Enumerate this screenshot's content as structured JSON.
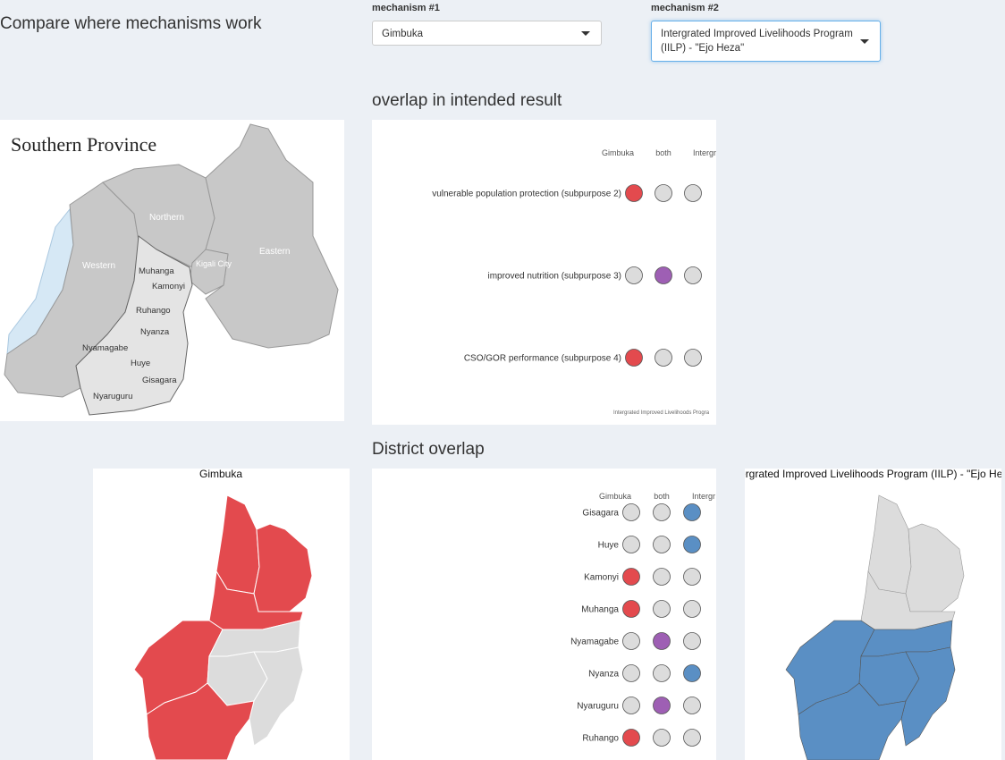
{
  "page_title": "Compare where mechanisms work",
  "mechanism1": {
    "label": "mechanism #1",
    "value": "Gimbuka"
  },
  "mechanism2": {
    "label": "mechanism #2",
    "value": "Intergrated Improved Livelihoods Program (IILP) - \"Ejo Heza\""
  },
  "result_section": {
    "title": "overlap in intended result",
    "columns": [
      "Gimbuka",
      "both",
      "Intergr"
    ],
    "rows": [
      {
        "label": "vulnerable population protection (subpurpose 2)",
        "status": "mech1"
      },
      {
        "label": "improved nutrition (subpurpose 3)",
        "status": "both"
      },
      {
        "label": "CSO/GOR performance (subpurpose 4)",
        "status": "mech1"
      }
    ],
    "footer_text": "Intergrated Improved Livelihoods Progra"
  },
  "district_section": {
    "title": "District overlap",
    "columns": [
      "Gimbuka",
      "both",
      "Intergr"
    ],
    "rows": [
      {
        "label": "Gisagara",
        "status": "mech2"
      },
      {
        "label": "Huye",
        "status": "mech2"
      },
      {
        "label": "Kamonyi",
        "status": "mech1"
      },
      {
        "label": "Muhanga",
        "status": "mech1"
      },
      {
        "label": "Nyamagabe",
        "status": "both"
      },
      {
        "label": "Nyanza",
        "status": "mech2"
      },
      {
        "label": "Nyaruguru",
        "status": "both"
      },
      {
        "label": "Ruhango",
        "status": "mech1"
      }
    ]
  },
  "reference_map": {
    "title": "Southern Province",
    "provinces": [
      "Northern",
      "Western",
      "Eastern",
      "Kigali City"
    ],
    "districts": [
      "Muhanga",
      "Kamonyi",
      "Ruhango",
      "Nyanza",
      "Nyamagabe",
      "Huye",
      "Gisagara",
      "Nyaruguru"
    ]
  },
  "left_map_title": "Gimbuka",
  "right_map_title": "Intergrated Improved Livelihoods Program (IILP) - \"Ejo Heza\"",
  "colors": {
    "mech1": "#e34a4e",
    "both": "#9e5fb4",
    "mech2": "#5a8fc4",
    "none": "#dcdcdc",
    "province_gray": "#c8c8c8",
    "lake": "#d6e8f5"
  }
}
